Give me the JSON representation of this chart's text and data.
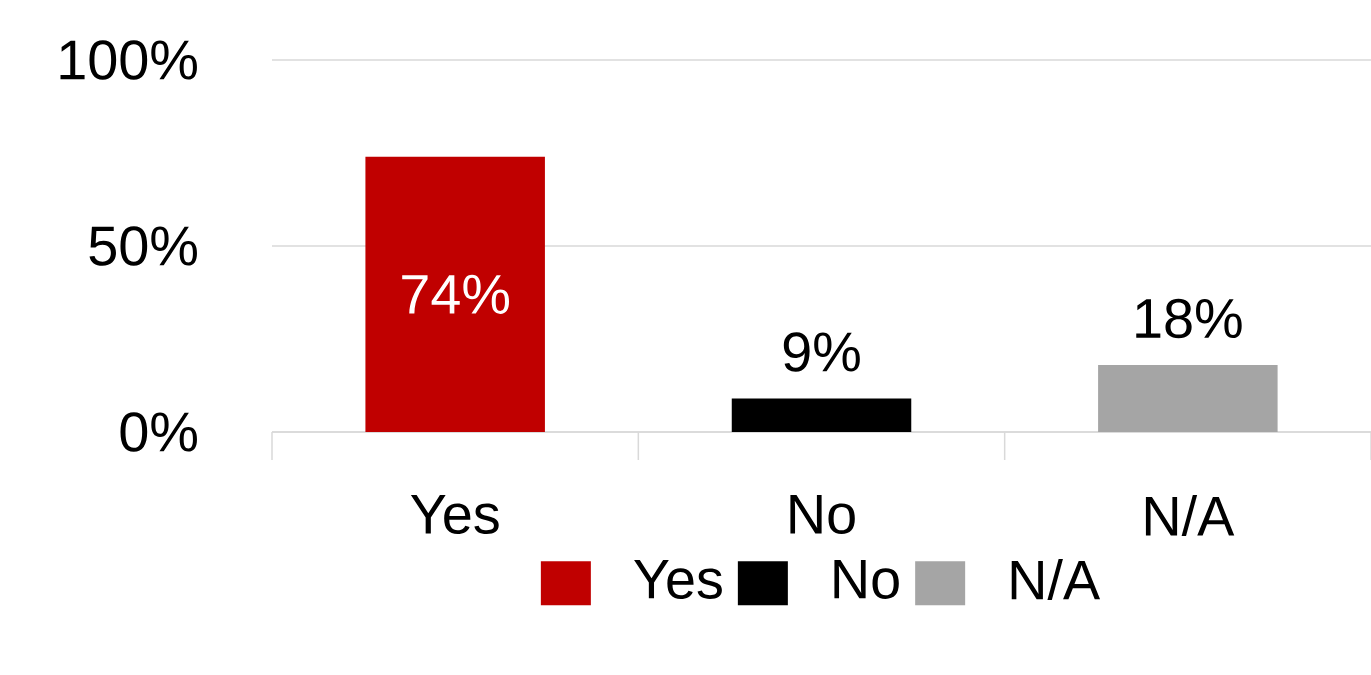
{
  "chart_data": {
    "type": "bar",
    "categories": [
      "Yes",
      "No",
      "N/A"
    ],
    "series": [
      {
        "name": "Yes",
        "color": "#c00000",
        "values": [
          74,
          null,
          null
        ],
        "value_labels": [
          "74%",
          null,
          null
        ]
      },
      {
        "name": "No",
        "color": "#000000",
        "values": [
          null,
          9,
          null
        ],
        "value_labels": [
          null,
          "9%",
          null
        ]
      },
      {
        "name": "N/A",
        "color": "#a5a5a5",
        "values": [
          null,
          null,
          18
        ],
        "value_labels": [
          null,
          null,
          "18%"
        ]
      }
    ],
    "ylim": [
      0,
      100
    ],
    "yticks": [
      {
        "value": 0,
        "label": "0%"
      },
      {
        "value": 50,
        "label": "50%"
      },
      {
        "value": 100,
        "label": "100%"
      }
    ],
    "grid": "y",
    "legend": "bottom"
  }
}
